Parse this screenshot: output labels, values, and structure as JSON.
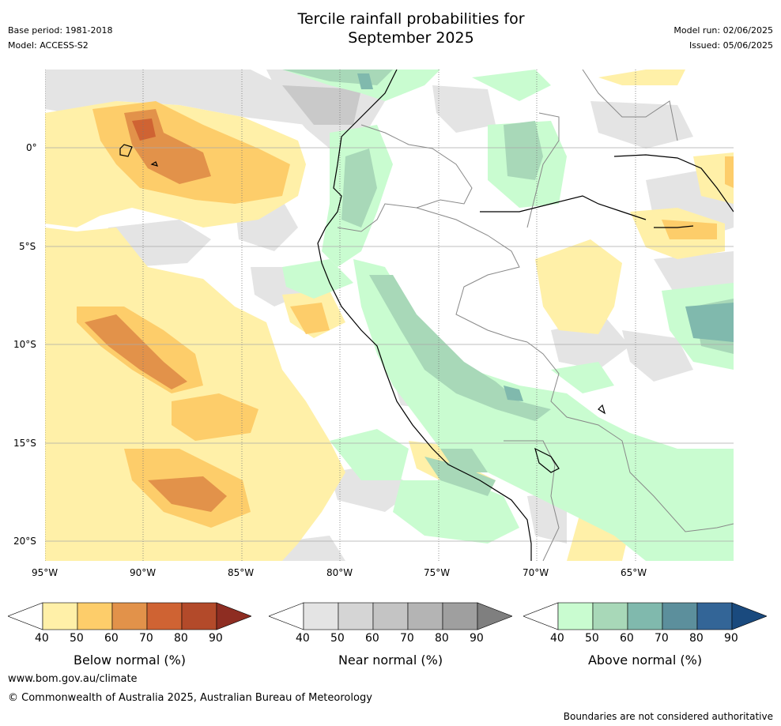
{
  "title": "Tercile rainfall probabilities for\nSeptember 2025",
  "meta": {
    "base_period": "Base period: 1981-2018",
    "model": "Model: ACCESS-S2",
    "model_run": "Model run: 02/06/2025",
    "issued": "Issued: 05/06/2025"
  },
  "axes": {
    "lon_labels": [
      "95°W",
      "90°W",
      "85°W",
      "80°W",
      "75°W",
      "70°W",
      "65°W"
    ],
    "lat_labels": [
      "0°",
      "5°S",
      "10°S",
      "15°S",
      "20°S"
    ]
  },
  "colorbars": [
    {
      "id": "below",
      "label": "Below normal (%)",
      "ticks": [
        "40",
        "50",
        "60",
        "70",
        "80",
        "90"
      ],
      "colors": [
        "#fff0a8",
        "#fdcd6a",
        "#e2924a",
        "#cf6333",
        "#b34a2a",
        "#8e2d22"
      ]
    },
    {
      "id": "near",
      "label": "Near normal (%)",
      "ticks": [
        "40",
        "50",
        "60",
        "70",
        "80",
        "90"
      ],
      "colors": [
        "#e4e4e4",
        "#d5d5d5",
        "#c4c4c4",
        "#b4b4b4",
        "#9f9f9f",
        "#7f7f7f"
      ]
    },
    {
      "id": "above",
      "label": "Above normal (%)",
      "ticks": [
        "40",
        "50",
        "60",
        "70",
        "80",
        "90"
      ],
      "colors": [
        "#c9fcd0",
        "#a8d8b8",
        "#80b9ad",
        "#5c8f9c",
        "#336597",
        "#1a4a7e"
      ]
    }
  ],
  "footer": {
    "site": "www.bom.gov.au/climate",
    "copyright": "© Commonwealth of Australia 2025, Australian Bureau of Meteorology",
    "disclaimer": "Boundaries are not considered authoritative"
  }
}
